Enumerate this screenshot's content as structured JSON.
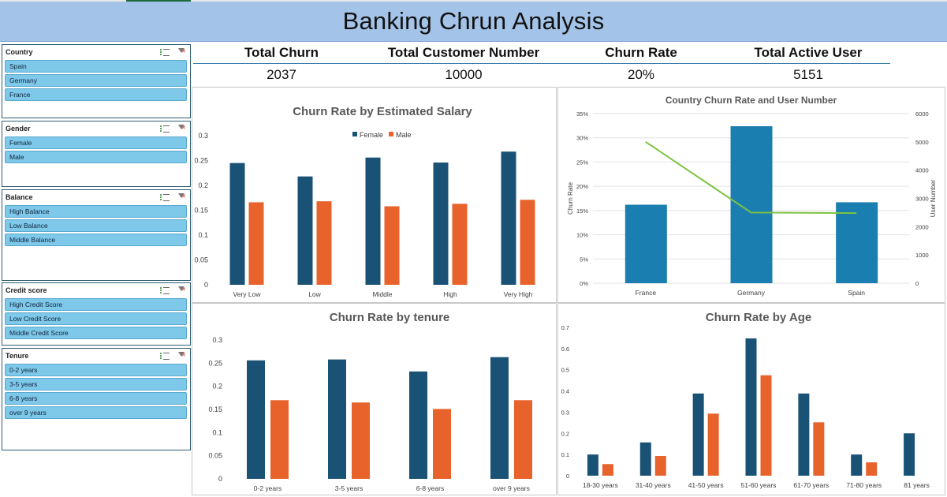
{
  "app": {
    "title": "Banking Chrun Analysis"
  },
  "colors": {
    "female": "#1a5276",
    "male": "#e8622c",
    "country_bar": "#1a7fb0",
    "country_line": "#7dc242",
    "slicer_item": "#7ec8ea"
  },
  "slicers": [
    {
      "title": "Country",
      "items": [
        "Spain",
        "Germany",
        "France"
      ]
    },
    {
      "title": "Gender",
      "items": [
        "Female",
        "Male"
      ]
    },
    {
      "title": "Balance",
      "items": [
        "High Balance",
        "Low Balance",
        "Middle Balance"
      ]
    },
    {
      "title": "Credit score",
      "items": [
        "High Credit Score",
        "Low Credit Score",
        "Middle Credit Score"
      ]
    },
    {
      "title": "Tenure",
      "items": [
        "0-2 years",
        "3-5 years",
        "6-8 years",
        "over 9 years"
      ]
    }
  ],
  "kpis": [
    {
      "label": "Total Churn",
      "value": "2037"
    },
    {
      "label": "Total Customer Number",
      "value": "10000"
    },
    {
      "label": "Churn Rate",
      "value": "20%"
    },
    {
      "label": "Total Active User",
      "value": "5151"
    }
  ],
  "chart_data": [
    {
      "type": "bar",
      "title": "Churn Rate by Estimated Salary",
      "categories": [
        "Very Low",
        "Low",
        "Middle",
        "High",
        "Very High"
      ],
      "series": [
        {
          "name": "Female",
          "values": [
            0.245,
            0.218,
            0.256,
            0.246,
            0.268
          ]
        },
        {
          "name": "Male",
          "values": [
            0.166,
            0.168,
            0.158,
            0.163,
            0.171
          ]
        }
      ],
      "yticks": [
        "0",
        "0.05",
        "0.1",
        "0.15",
        "0.2",
        "0.25",
        "0.3"
      ],
      "ylim": [
        0,
        0.3
      ],
      "legend": "top"
    },
    {
      "type": "bar",
      "title": "Country Churn Rate and User Number",
      "categories": [
        "France",
        "Germany",
        "Spain"
      ],
      "bars": [
        0.162,
        0.324,
        0.167
      ],
      "line": [
        5000,
        2500,
        2480
      ],
      "ylabel": "Churn Rate",
      "y2label": "User Number",
      "yticks": [
        "0%",
        "5%",
        "10%",
        "15%",
        "20%",
        "25%",
        "30%",
        "35%"
      ],
      "y2ticks": [
        "0",
        "1000",
        "2000",
        "3000",
        "4000",
        "5000",
        "6000"
      ],
      "ylim": [
        0,
        0.35
      ],
      "y2lim": [
        0,
        6000
      ]
    },
    {
      "type": "bar",
      "title": "Churn Rate by tenure",
      "categories": [
        "0-2 years",
        "3-5 years",
        "6-8 years",
        "over 9 years"
      ],
      "series": [
        {
          "name": "Female",
          "values": [
            0.256,
            0.258,
            0.232,
            0.263
          ]
        },
        {
          "name": "Male",
          "values": [
            0.17,
            0.165,
            0.151,
            0.17
          ]
        }
      ],
      "yticks": [
        "0",
        "0.05",
        "0.1",
        "0.15",
        "0.2",
        "0.25",
        "0.3"
      ],
      "ylim": [
        0,
        0.3
      ]
    },
    {
      "type": "bar",
      "title": "Churn Rate by Age",
      "categories": [
        "18-30 years",
        "31-40 years",
        "41-50 years",
        "51-60 years",
        "61-70 years",
        "71-80 years",
        "81 years"
      ],
      "series": [
        {
          "name": "Female",
          "values": [
            0.1,
            0.157,
            0.388,
            0.648,
            0.388,
            0.1,
            0.2
          ]
        },
        {
          "name": "Male",
          "values": [
            0.055,
            0.093,
            0.293,
            0.474,
            0.252,
            0.063,
            null
          ]
        }
      ],
      "yticks": [
        "0",
        "0.1",
        "0.2",
        "0.3",
        "0.4",
        "0.5",
        "0.6",
        "0.7"
      ],
      "ylim": [
        0,
        0.7
      ]
    }
  ]
}
